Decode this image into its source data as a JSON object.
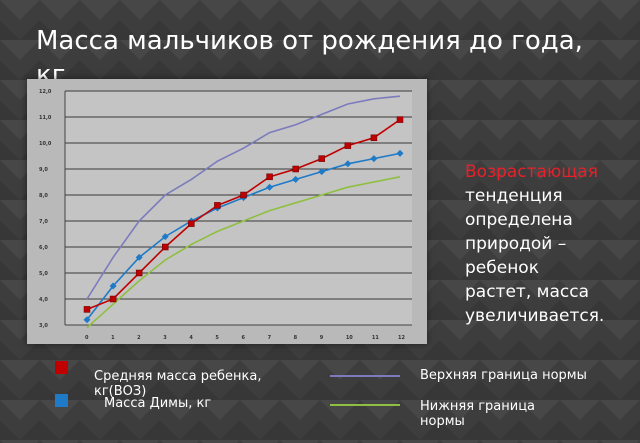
{
  "slide": {
    "title": "Масса мальчиков от рождения до года, кг",
    "side_text_highlight": "Возрастающая",
    "side_text_rest": " тенденция определена природой – ребенок растет, масса увеличивается."
  },
  "legend": {
    "items": [
      {
        "label": "Средняя масса ребенка, кг(ВОЗ)",
        "color": "#c00000",
        "kind": "square"
      },
      {
        "label": "Масса Димы, кг",
        "color": "#1f7ac8",
        "kind": "square"
      },
      {
        "label": "Верхняя граница нормы",
        "color": "#7b7bbd",
        "kind": "line"
      },
      {
        "label": "Нижняя граница нормы",
        "color": "#8fbf40",
        "kind": "line"
      }
    ]
  },
  "chart_data": {
    "type": "line",
    "x": [
      0,
      1,
      2,
      3,
      4,
      5,
      6,
      7,
      8,
      9,
      10,
      11,
      12
    ],
    "x_tick_labels": [
      "0",
      "1",
      "2",
      "3",
      "4",
      "5",
      "6",
      "7",
      "8",
      "9",
      "10",
      "11",
      "12"
    ],
    "y_tick_labels": [
      "3,0",
      "4,0",
      "5,0",
      "6,0",
      "7,0",
      "8,0",
      "9,0",
      "10,0",
      "11,0",
      "12,0"
    ],
    "ylim": [
      3,
      12
    ],
    "grid": true,
    "series": [
      {
        "name": "Средняя масса ребенка, кг(ВОЗ)",
        "color": "#c00000",
        "marker": "square",
        "values": [
          3.6,
          4.0,
          5.0,
          6.0,
          6.9,
          7.6,
          8.0,
          8.7,
          9.0,
          9.4,
          9.9,
          10.2,
          10.9
        ]
      },
      {
        "name": "Масса Димы, кг",
        "color": "#1f7ac8",
        "marker": "diamond",
        "values": [
          3.2,
          4.5,
          5.6,
          6.4,
          7.0,
          7.5,
          7.9,
          8.3,
          8.6,
          8.9,
          9.2,
          9.4,
          9.6
        ]
      },
      {
        "name": "Верхняя граница нормы",
        "color": "#7b7bbd",
        "marker": "none",
        "values": [
          4.0,
          5.6,
          7.0,
          8.0,
          8.6,
          9.3,
          9.8,
          10.4,
          10.7,
          11.1,
          11.5,
          11.7,
          11.8
        ]
      },
      {
        "name": "Нижняя граница нормы",
        "color": "#8fbf40",
        "marker": "none",
        "values": [
          2.9,
          3.8,
          4.7,
          5.5,
          6.1,
          6.6,
          7.0,
          7.4,
          7.7,
          8.0,
          8.3,
          8.5,
          8.7
        ]
      }
    ]
  }
}
